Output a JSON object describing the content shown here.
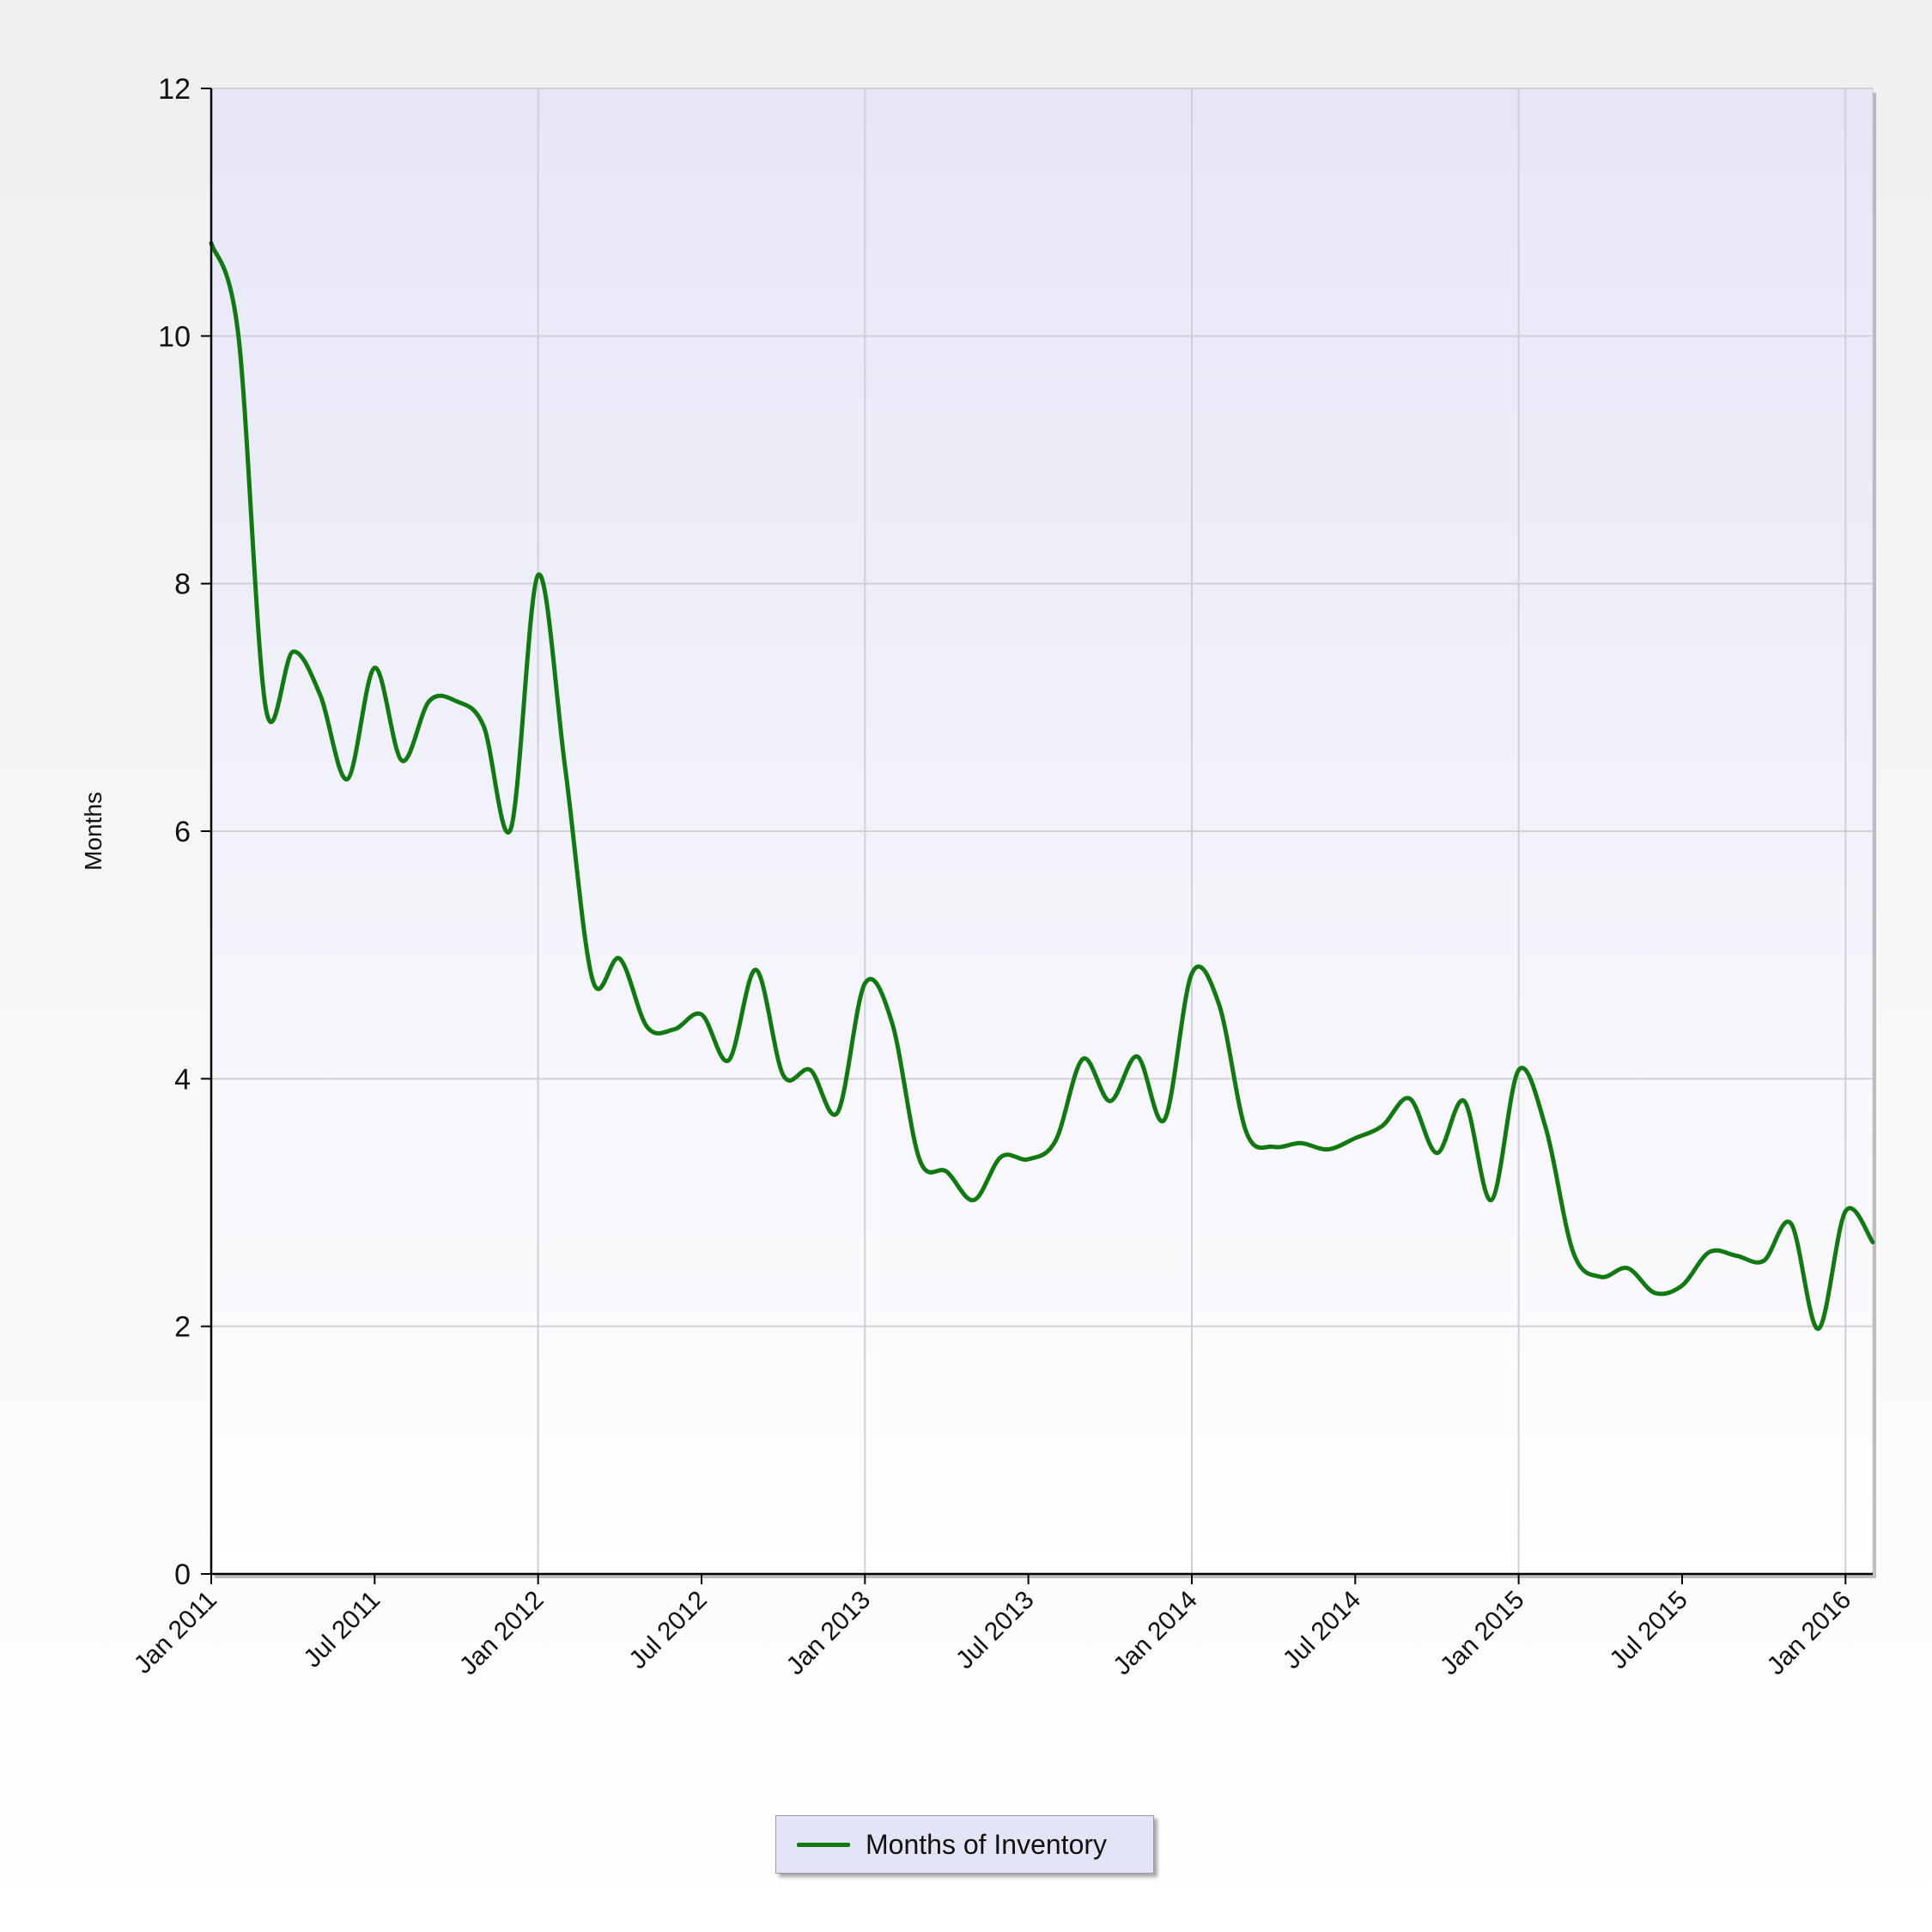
{
  "chart_data": {
    "type": "line",
    "title": "",
    "xlabel": "",
    "ylabel": "Months",
    "ylim": [
      0,
      12
    ],
    "y_ticks": [
      0,
      2,
      4,
      6,
      8,
      10,
      12
    ],
    "x_range": [
      "2011-01",
      "2016-02"
    ],
    "x_tick_labels": [
      "Jan 2011",
      "Jul 2011",
      "Jan 2012",
      "Jul 2012",
      "Jan 2013",
      "Jul 2013",
      "Jan 2014",
      "Jul 2014",
      "Jan 2015",
      "Jul 2015",
      "Jan 2016"
    ],
    "x_tick_dates": [
      "2011-01",
      "2011-07",
      "2012-01",
      "2012-07",
      "2013-01",
      "2013-07",
      "2014-01",
      "2014-07",
      "2015-01",
      "2015-07",
      "2016-01"
    ],
    "grid": {
      "horizontal": true,
      "vertical": "yearly"
    },
    "legend_position": "bottom-center",
    "series": [
      {
        "name": "Months of Inventory",
        "color": "#127812",
        "x": [
          "2011-01",
          "2011-02",
          "2011-03",
          "2011-04",
          "2011-05",
          "2011-06",
          "2011-07",
          "2011-08",
          "2011-09",
          "2011-10",
          "2011-11",
          "2011-12",
          "2012-01",
          "2012-02",
          "2012-03",
          "2012-04",
          "2012-05",
          "2012-06",
          "2012-07",
          "2012-08",
          "2012-09",
          "2012-10",
          "2012-11",
          "2012-12",
          "2013-01",
          "2013-02",
          "2013-03",
          "2013-04",
          "2013-05",
          "2013-06",
          "2013-07",
          "2013-08",
          "2013-09",
          "2013-10",
          "2013-11",
          "2013-12",
          "2014-01",
          "2014-02",
          "2014-03",
          "2014-04",
          "2014-05",
          "2014-06",
          "2014-07",
          "2014-08",
          "2014-09",
          "2014-10",
          "2014-11",
          "2014-12",
          "2015-01",
          "2015-02",
          "2015-03",
          "2015-04",
          "2015-05",
          "2015-06",
          "2015-07",
          "2015-08",
          "2015-09",
          "2015-10",
          "2015-11",
          "2015-12",
          "2016-01",
          "2016-02"
        ],
        "values": [
          10.75,
          10.0,
          7.0,
          7.45,
          7.1,
          6.42,
          7.32,
          6.57,
          7.05,
          7.05,
          6.85,
          6.02,
          8.07,
          6.5,
          4.8,
          4.97,
          4.42,
          4.4,
          4.52,
          4.15,
          4.88,
          4.03,
          4.07,
          3.73,
          4.77,
          4.45,
          3.35,
          3.25,
          3.02,
          3.37,
          3.35,
          3.5,
          4.16,
          3.82,
          4.18,
          3.67,
          4.85,
          4.6,
          3.57,
          3.45,
          3.48,
          3.43,
          3.52,
          3.62,
          3.84,
          3.4,
          3.82,
          3.02,
          4.07,
          3.6,
          2.6,
          2.4,
          2.47,
          2.27,
          2.33,
          2.6,
          2.57,
          2.53,
          2.83,
          1.98,
          2.93,
          2.68
        ]
      }
    ]
  }
}
